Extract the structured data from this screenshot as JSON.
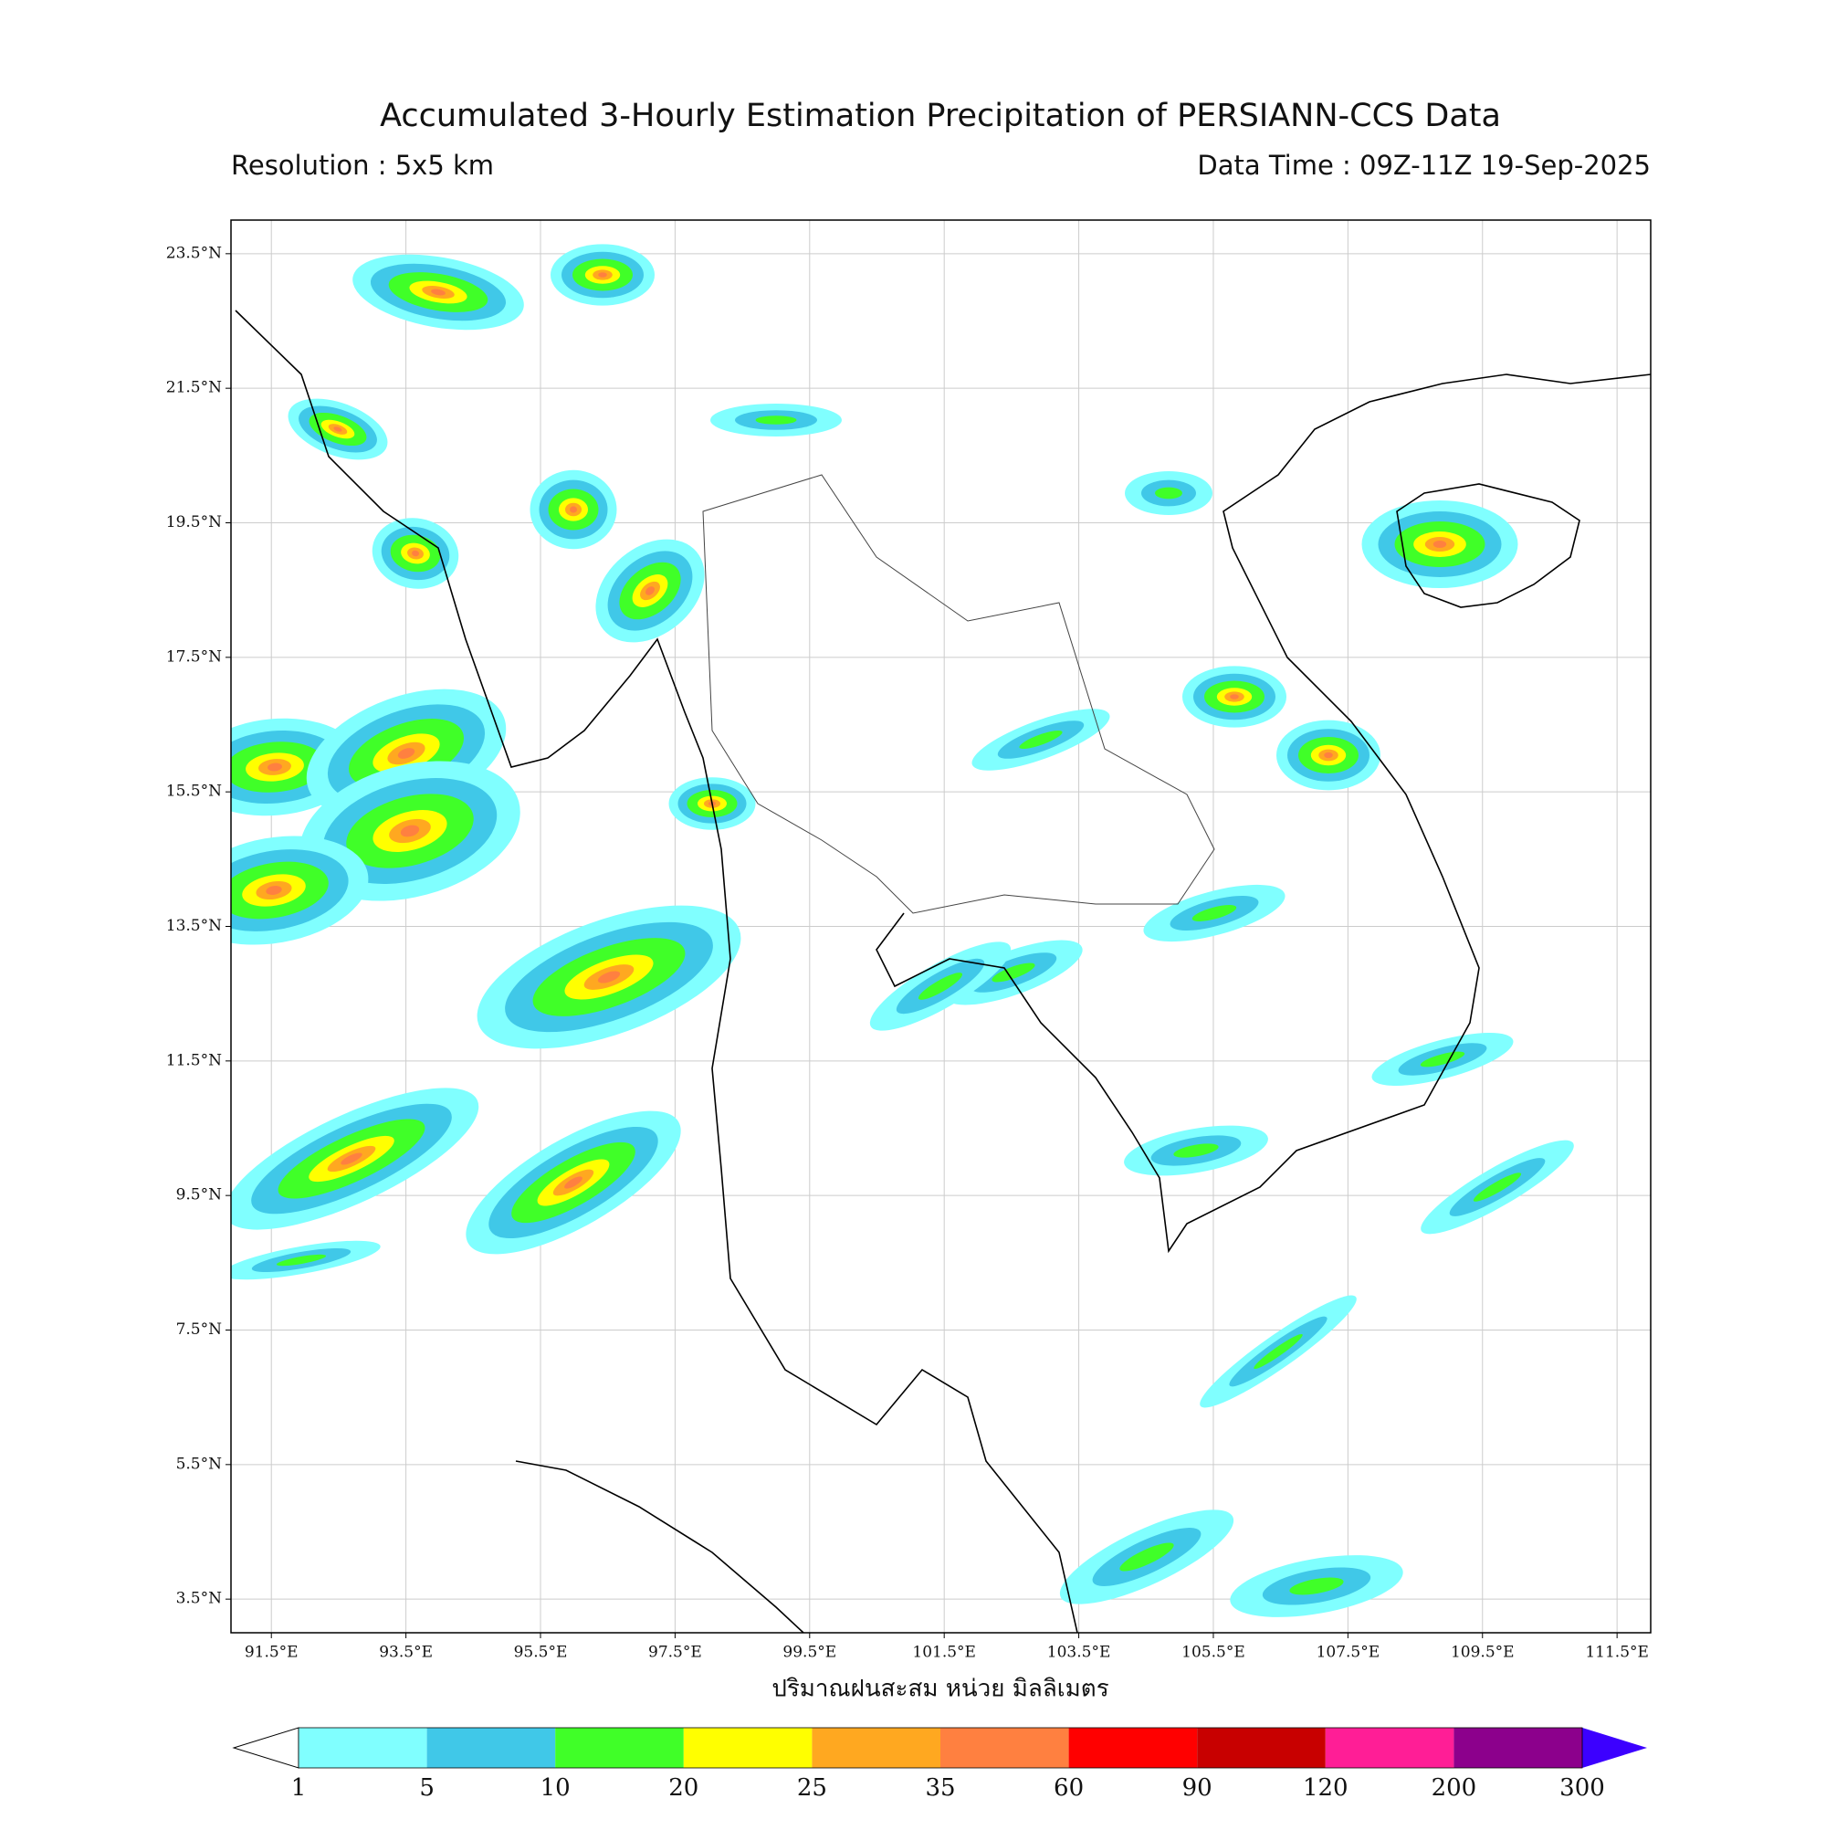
{
  "map": {
    "title": "Accumulated 3-Hourly Estimation Precipitation of PERSIANN-CCS Data",
    "resolution": "Resolution : 5x5 km",
    "data_time": "Data Time : 09Z-11Z 19-Sep-2025",
    "axis_label": "ปริมาณฝนสะสม หน่วย มิลลิเมตร",
    "lon_range": [
      90.9,
      112.0
    ],
    "lat_range": [
      3.0,
      24.0
    ],
    "lon_ticks": [
      {
        "value": 91.5,
        "label": "91.5°E"
      },
      {
        "value": 93.5,
        "label": "93.5°E"
      },
      {
        "value": 95.5,
        "label": "95.5°E"
      },
      {
        "value": 97.5,
        "label": "97.5°E"
      },
      {
        "value": 99.5,
        "label": "99.5°E"
      },
      {
        "value": 101.5,
        "label": "101.5°E"
      },
      {
        "value": 103.5,
        "label": "103.5°E"
      },
      {
        "value": 105.5,
        "label": "105.5°E"
      },
      {
        "value": 107.5,
        "label": "107.5°E"
      },
      {
        "value": 109.5,
        "label": "109.5°E"
      },
      {
        "value": 111.5,
        "label": "111.5°E"
      }
    ],
    "lat_ticks": [
      {
        "value": 23.5,
        "label": "23.5°N"
      },
      {
        "value": 21.5,
        "label": "21.5°N"
      },
      {
        "value": 19.5,
        "label": "19.5°N"
      },
      {
        "value": 17.5,
        "label": "17.5°N"
      },
      {
        "value": 15.5,
        "label": "15.5°N"
      },
      {
        "value": 13.5,
        "label": "13.5°N"
      },
      {
        "value": 11.5,
        "label": "11.5°N"
      },
      {
        "value": 9.5,
        "label": "9.5°N"
      },
      {
        "value": 7.5,
        "label": "7.5°N"
      },
      {
        "value": 5.5,
        "label": "5.5°N"
      },
      {
        "value": 3.5,
        "label": "3.5°N"
      }
    ],
    "colorbar": {
      "levels": [
        1,
        5,
        10,
        20,
        25,
        35,
        60,
        90,
        120,
        200,
        300
      ],
      "colors": [
        "#80ffff",
        "#40c8e8",
        "#40ff28",
        "#ffff00",
        "#ffa820",
        "#ff8040",
        "#ff0000",
        "#c80000",
        "#ff1e96",
        "#8c008c"
      ],
      "over_color": "#3c00ff"
    }
  }
}
